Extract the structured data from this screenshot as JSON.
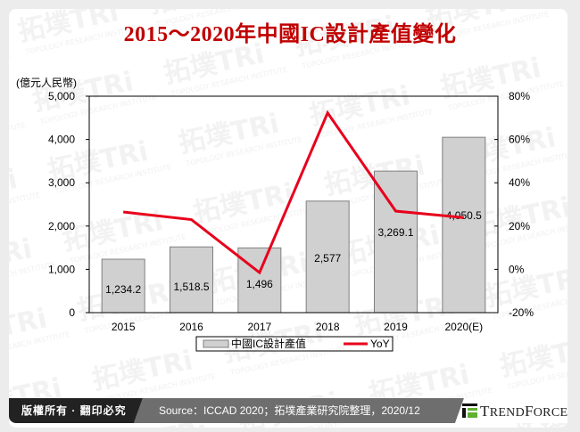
{
  "title": "2015～2020年中國IC設計產值變化",
  "unit_label": "(億元人民幣)",
  "footer": {
    "copyright": "版權所有 · 翻印必究",
    "source": "Source：ICCAD 2020；拓墣產業研究院整理，2020/12",
    "brand": "TrendForce"
  },
  "legend": {
    "bar_label": "中國IC設計產值",
    "line_label": "YoY"
  },
  "colors": {
    "title": "#c00000",
    "bar_fill": "#d0d0d0",
    "bar_stroke": "#7f7f7f",
    "line": "#e8001c",
    "footer_dark": "#222222",
    "footer_gray": "#6e6e6e",
    "brand_green": "#5fb030"
  },
  "chart_data": {
    "type": "bar+line",
    "title": "2015～2020年中國IC設計產值變化",
    "categories": [
      "2015",
      "2016",
      "2017",
      "2018",
      "2019",
      "2020(E)"
    ],
    "series": [
      {
        "name": "中國IC設計產值",
        "type": "bar",
        "axis": "left",
        "values": [
          1234.2,
          1518.5,
          1496,
          2577,
          3269.1,
          4050.5
        ],
        "labels": [
          "1,234.2",
          "1,518.5",
          "1,496",
          "2,577",
          "3,269.1",
          "4,050.5"
        ]
      },
      {
        "name": "YoY",
        "type": "line",
        "axis": "right",
        "unit": "%",
        "values": [
          26.5,
          23.0,
          -1.5,
          72.3,
          26.9,
          23.9
        ]
      }
    ],
    "ylabel": "(億元人民幣)",
    "ylim": [
      0,
      5000
    ],
    "yticks": [
      "0",
      "1,000",
      "2,000",
      "3,000",
      "4,000",
      "5,000"
    ],
    "y2lim": [
      -20,
      80
    ],
    "y2ticks": [
      "-20%",
      "0%",
      "20%",
      "40%",
      "60%",
      "80%"
    ],
    "grid": false,
    "legend_position": "bottom"
  }
}
